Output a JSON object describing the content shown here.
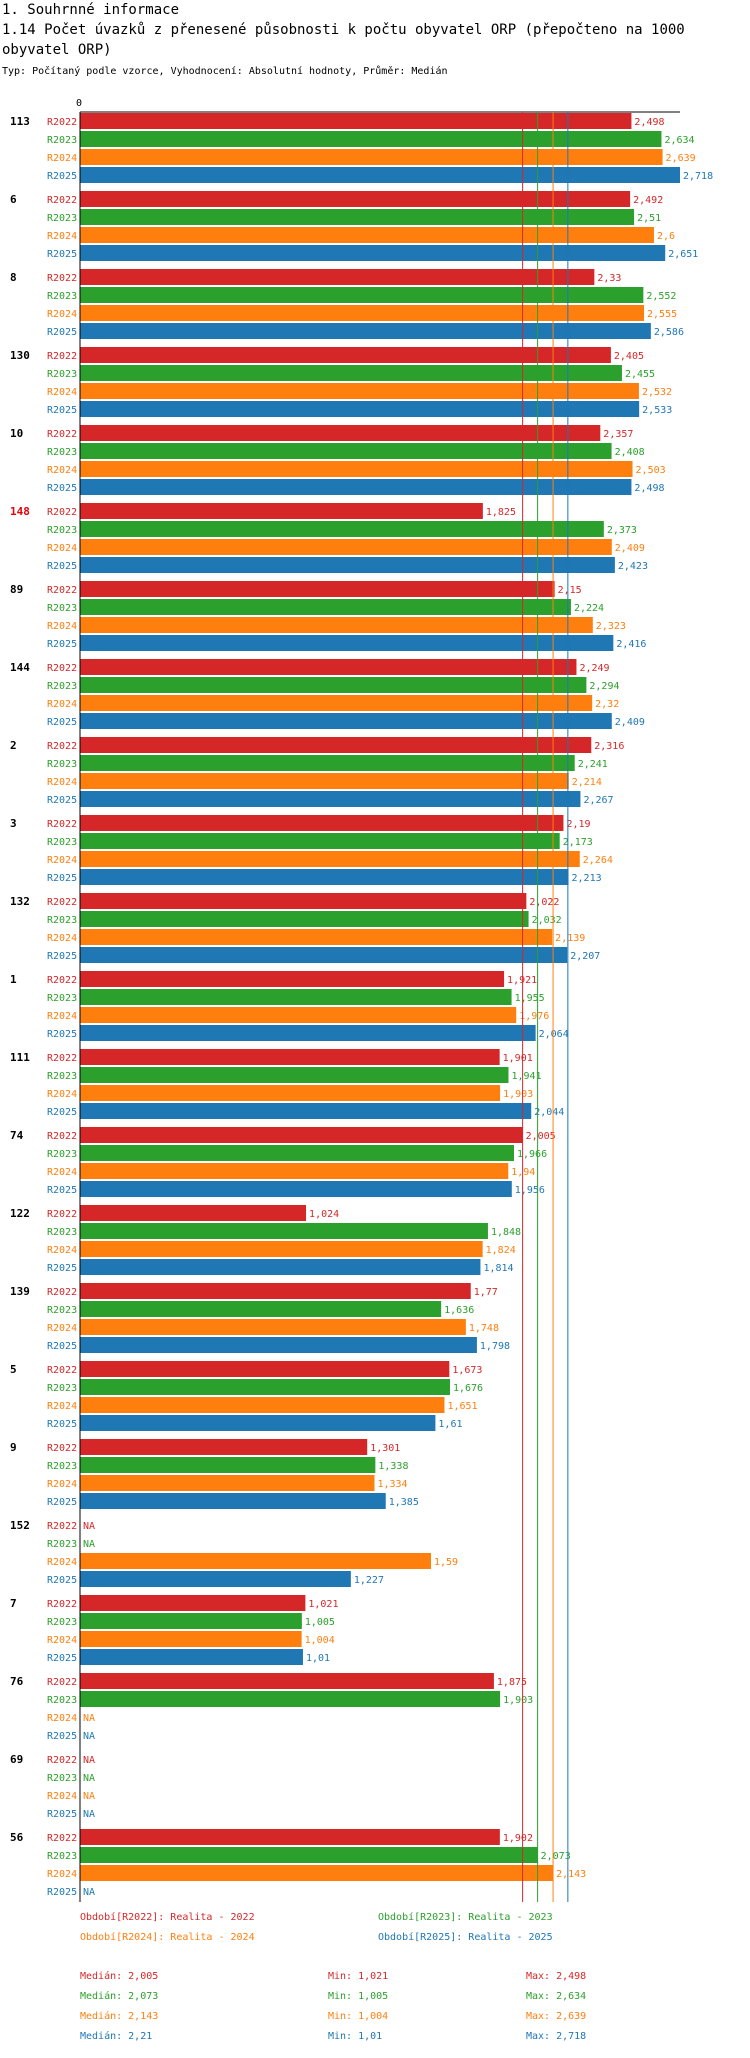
{
  "header": {
    "section": "1. Souhrnné informace",
    "title": "1.14 Počet úvazků z přenesené působnosti k počtu obyvatel ORP (přepočteno na 1000 obyvatel ORP)",
    "subtitle": "Typ: Počítaný podle vzorce, Vyhodnocení: Absolutní hodnoty, Průměr: Medián"
  },
  "colors": {
    "R2022": "#d62728",
    "R2023": "#2ca02c",
    "R2024": "#ff7f0e",
    "R2025": "#1f77b4",
    "highlight_group": "#e8000b"
  },
  "chart_data": {
    "type": "bar",
    "orientation": "horizontal",
    "axis_label": "0",
    "xlim": [
      0,
      2.718
    ],
    "highlighted_category": "148",
    "series_names": [
      "R2022",
      "R2023",
      "R2024",
      "R2025"
    ],
    "categories": [
      "113",
      "6",
      "8",
      "130",
      "10",
      "148",
      "89",
      "144",
      "2",
      "3",
      "132",
      "1",
      "111",
      "74",
      "122",
      "139",
      "5",
      "9",
      "152",
      "7",
      "76",
      "69",
      "56"
    ],
    "series": [
      {
        "name": "R2022",
        "values": [
          2.498,
          2.492,
          2.33,
          2.405,
          2.357,
          1.825,
          2.15,
          2.249,
          2.316,
          2.19,
          2.022,
          1.921,
          1.901,
          2.005,
          1.024,
          1.77,
          1.673,
          1.301,
          null,
          1.021,
          1.875,
          null,
          1.902
        ]
      },
      {
        "name": "R2023",
        "values": [
          2.634,
          2.51,
          2.552,
          2.455,
          2.408,
          2.373,
          2.224,
          2.294,
          2.241,
          2.173,
          2.032,
          1.955,
          1.941,
          1.966,
          1.848,
          1.636,
          1.676,
          1.338,
          null,
          1.005,
          1.903,
          null,
          2.073
        ]
      },
      {
        "name": "R2024",
        "values": [
          2.639,
          2.6,
          2.555,
          2.532,
          2.503,
          2.409,
          2.323,
          2.32,
          2.214,
          2.264,
          2.139,
          1.976,
          1.903,
          1.94,
          1.824,
          1.748,
          1.651,
          1.334,
          1.59,
          1.004,
          null,
          null,
          2.143
        ]
      },
      {
        "name": "R2025",
        "values": [
          2.718,
          2.651,
          2.586,
          2.533,
          2.498,
          2.423,
          2.416,
          2.409,
          2.267,
          2.213,
          2.207,
          2.064,
          2.044,
          1.956,
          1.814,
          1.798,
          1.61,
          1.385,
          1.227,
          1.01,
          null,
          null,
          null
        ]
      }
    ],
    "value_labels": [
      [
        "2,498",
        "2,634",
        "2,639",
        "2,718"
      ],
      [
        "2,492",
        "2,51",
        "2,6",
        "2,651"
      ],
      [
        "2,33",
        "2,552",
        "2,555",
        "2,586"
      ],
      [
        "2,405",
        "2,455",
        "2,532",
        "2,533"
      ],
      [
        "2,357",
        "2,408",
        "2,503",
        "2,498"
      ],
      [
        "1,825",
        "2,373",
        "2,409",
        "2,423"
      ],
      [
        "2,15",
        "2,224",
        "2,323",
        "2,416"
      ],
      [
        "2,249",
        "2,294",
        "2,32",
        "2,409"
      ],
      [
        "2,316",
        "2,241",
        "2,214",
        "2,267"
      ],
      [
        "2,19",
        "2,173",
        "2,264",
        "2,213"
      ],
      [
        "2,022",
        "2,032",
        "2,139",
        "2,207"
      ],
      [
        "1,921",
        "1,955",
        "1,976",
        "2,064"
      ],
      [
        "1,901",
        "1,941",
        "1,903",
        "2,044"
      ],
      [
        "2,005",
        "1,966",
        "1,94",
        "1,956"
      ],
      [
        "1,024",
        "1,848",
        "1,824",
        "1,814"
      ],
      [
        "1,77",
        "1,636",
        "1,748",
        "1,798"
      ],
      [
        "1,673",
        "1,676",
        "1,651",
        "1,61"
      ],
      [
        "1,301",
        "1,338",
        "1,334",
        "1,385"
      ],
      [
        "NA",
        "NA",
        "1,59",
        "1,227"
      ],
      [
        "1,021",
        "1,005",
        "1,004",
        "1,01"
      ],
      [
        "1,875",
        "1,903",
        "NA",
        "NA"
      ],
      [
        "NA",
        "NA",
        "NA",
        "NA"
      ],
      [
        "1,902",
        "2,073",
        "2,143",
        "NA"
      ]
    ],
    "median_lines": [
      {
        "series": "R2022",
        "value": 2.005
      },
      {
        "series": "R2023",
        "value": 2.073
      },
      {
        "series": "R2024",
        "value": 2.143
      },
      {
        "series": "R2025",
        "value": 2.21
      }
    ],
    "legend": [
      {
        "series": "R2022",
        "label": "Období[R2022]: Realita - 2022"
      },
      {
        "series": "R2023",
        "label": "Období[R2023]: Realita - 2023"
      },
      {
        "series": "R2024",
        "label": "Období[R2024]: Realita - 2024"
      },
      {
        "series": "R2025",
        "label": "Období[R2025]: Realita - 2025"
      }
    ],
    "stats": [
      {
        "series": "R2022",
        "median": "Medián: 2,005",
        "min": "Min: 1,021",
        "max": "Max: 2,498"
      },
      {
        "series": "R2023",
        "median": "Medián: 2,073",
        "min": "Min: 1,005",
        "max": "Max: 2,634"
      },
      {
        "series": "R2024",
        "median": "Medián: 2,143",
        "min": "Min: 1,004",
        "max": "Max: 2,639"
      },
      {
        "series": "R2025",
        "median": "Medián: 2,21",
        "min": "Min: 1,01",
        "max": "Max: 2,718"
      }
    ]
  }
}
